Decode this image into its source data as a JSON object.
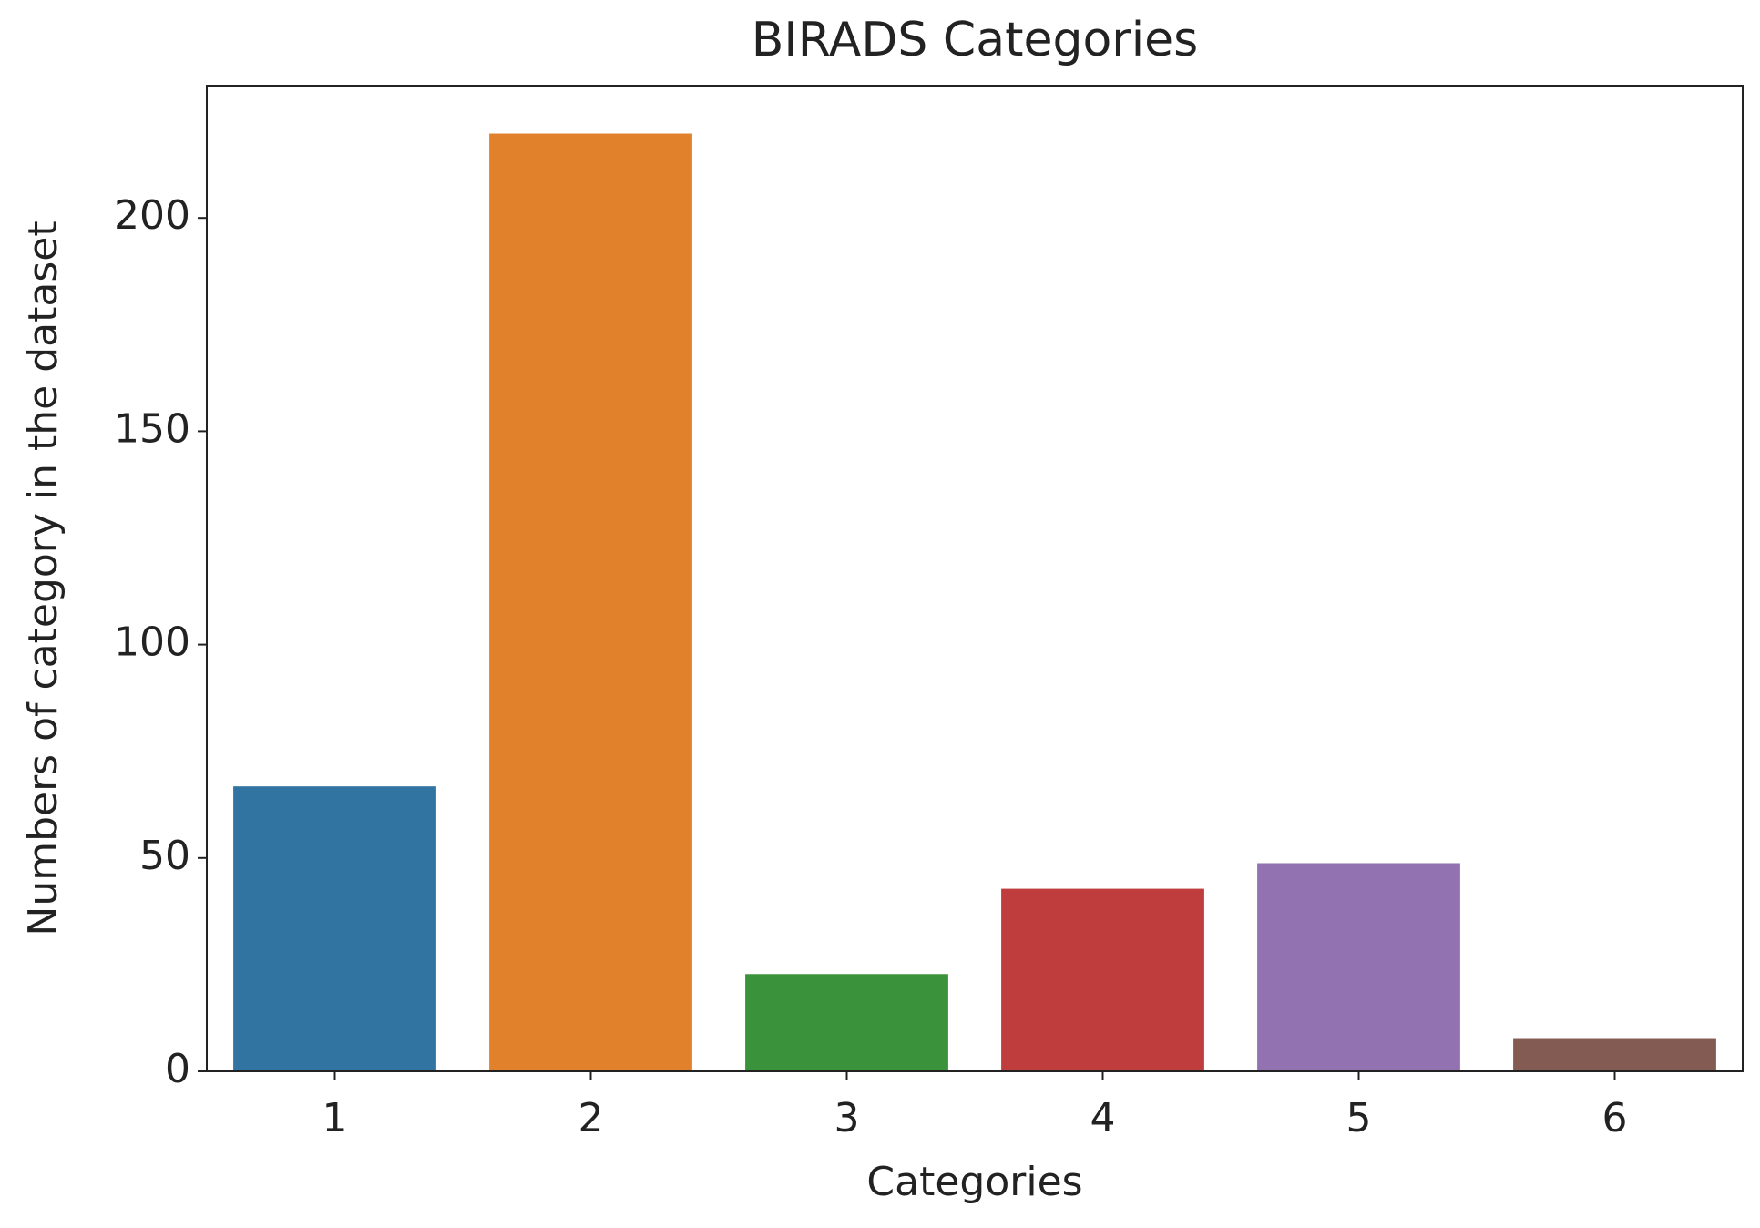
{
  "chart_data": {
    "type": "bar",
    "title": "BIRADS Categories",
    "x_label": "Categories",
    "y_label": "Numbers of category in the dataset",
    "categories": [
      "1",
      "2",
      "3",
      "4",
      "5",
      "6"
    ],
    "values": [
      67,
      220,
      23,
      43,
      49,
      8
    ],
    "colors": [
      "#3274a1",
      "#e1812c",
      "#3a923a",
      "#c03d3e",
      "#9372b2",
      "#845b53"
    ],
    "ylim": [
      0,
      231
    ],
    "yticks": [
      0,
      50,
      100,
      150,
      200
    ],
    "grid": false
  }
}
